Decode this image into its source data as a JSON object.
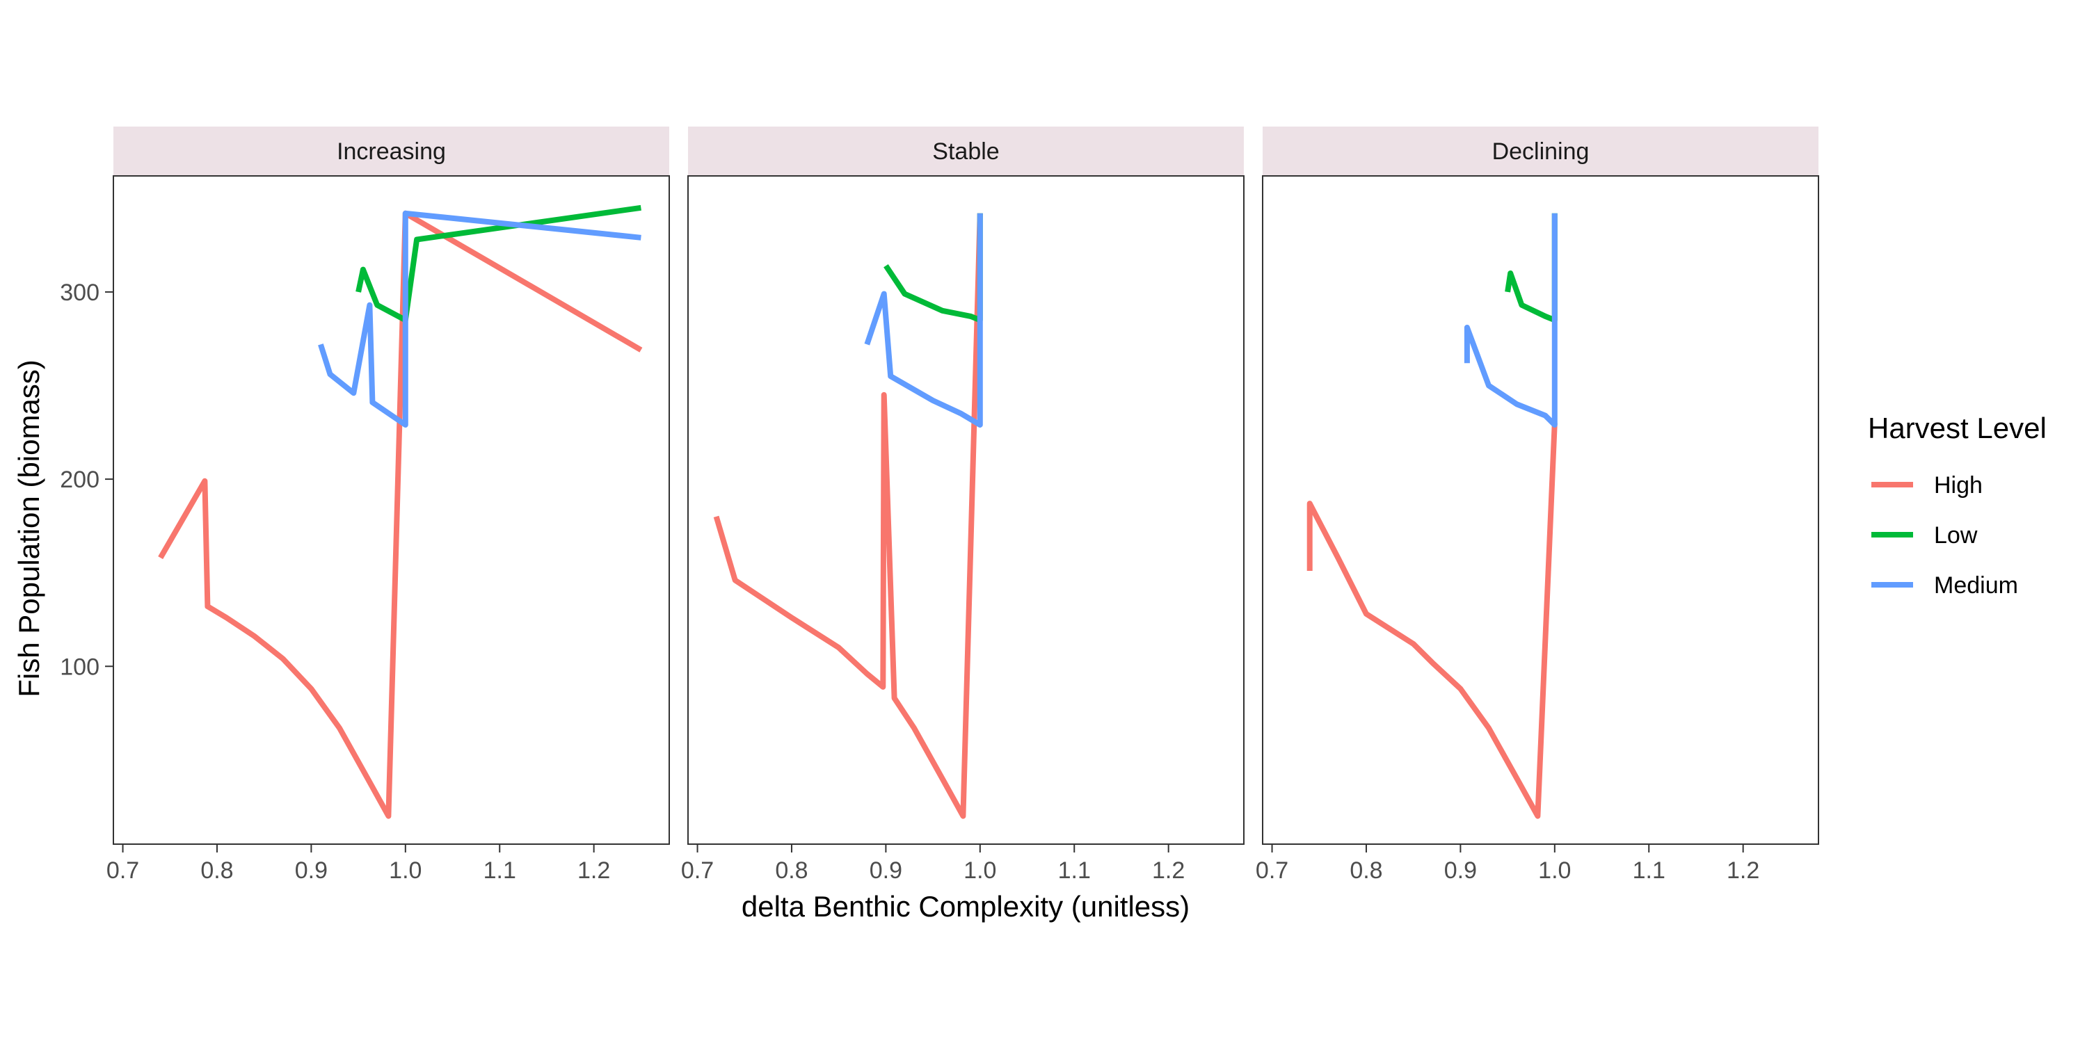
{
  "chart_data": {
    "type": "line",
    "facets": [
      "Increasing",
      "Stable",
      "Declining"
    ],
    "xlabel": "delta Benthic Complexity (unitless)",
    "ylabel": "Fish Population (biomass)",
    "xlim": [
      0.69,
      1.28
    ],
    "ylim": [
      5,
      362
    ],
    "x_ticks": [
      0.7,
      0.8,
      0.9,
      1.0,
      1.1,
      1.2
    ],
    "x_tick_labels": [
      "0.7",
      "0.8",
      "0.9",
      "1.0",
      "1.1",
      "1.2"
    ],
    "y_ticks": [
      100,
      200,
      300
    ],
    "y_tick_labels": [
      "100",
      "200",
      "300"
    ],
    "grid": false,
    "legend": {
      "title": "Harvest Level",
      "position": "right",
      "entries": [
        {
          "name": "High",
          "color": "#F8766D"
        },
        {
          "name": "Low",
          "color": "#00BA38"
        },
        {
          "name": "Medium",
          "color": "#619CFF"
        }
      ]
    },
    "panels": [
      {
        "facet": "Increasing",
        "series": [
          {
            "name": "High",
            "color": "#F8766D",
            "points": [
              [
                0.74,
                158
              ],
              [
                0.787,
                199
              ],
              [
                0.79,
                132
              ],
              [
                0.81,
                126
              ],
              [
                0.84,
                116
              ],
              [
                0.87,
                104
              ],
              [
                0.9,
                88
              ],
              [
                0.93,
                67
              ],
              [
                0.96,
                40
              ],
              [
                0.982,
                20
              ],
              [
                1.0,
                342
              ],
              [
                1.25,
                269
              ]
            ]
          },
          {
            "name": "Low",
            "color": "#00BA38",
            "points": [
              [
                0.95,
                300
              ],
              [
                0.955,
                312
              ],
              [
                0.97,
                293
              ],
              [
                1.0,
                285
              ],
              [
                1.012,
                328
              ],
              [
                1.25,
                345
              ]
            ]
          },
          {
            "name": "Medium",
            "color": "#619CFF",
            "points": [
              [
                0.91,
                272
              ],
              [
                0.92,
                256
              ],
              [
                0.945,
                246
              ],
              [
                0.962,
                293
              ],
              [
                0.965,
                241
              ],
              [
                1.0,
                229
              ],
              [
                1.0,
                342
              ],
              [
                1.25,
                329
              ]
            ]
          }
        ]
      },
      {
        "facet": "Stable",
        "series": [
          {
            "name": "High",
            "color": "#F8766D",
            "points": [
              [
                0.72,
                180
              ],
              [
                0.74,
                146
              ],
              [
                0.8,
                126
              ],
              [
                0.85,
                110
              ],
              [
                0.88,
                96
              ],
              [
                0.897,
                89
              ],
              [
                0.898,
                245
              ],
              [
                0.909,
                83
              ],
              [
                0.93,
                67
              ],
              [
                0.96,
                40
              ],
              [
                0.982,
                20
              ],
              [
                1.0,
                342
              ]
            ]
          },
          {
            "name": "Low",
            "color": "#00BA38",
            "points": [
              [
                0.9,
                314
              ],
              [
                0.92,
                299
              ],
              [
                0.96,
                290
              ],
              [
                0.99,
                287
              ],
              [
                1.0,
                285
              ],
              [
                1.0,
                342
              ]
            ]
          },
          {
            "name": "Medium",
            "color": "#619CFF",
            "points": [
              [
                0.88,
                272
              ],
              [
                0.898,
                299
              ],
              [
                0.905,
                255
              ],
              [
                0.95,
                242
              ],
              [
                0.98,
                235
              ],
              [
                1.0,
                229
              ],
              [
                1.0,
                342
              ]
            ]
          }
        ]
      },
      {
        "facet": "Declining",
        "series": [
          {
            "name": "High",
            "color": "#F8766D",
            "points": [
              [
                0.74,
                151
              ],
              [
                0.74,
                187
              ],
              [
                0.77,
                158
              ],
              [
                0.8,
                128
              ],
              [
                0.85,
                112
              ],
              [
                0.87,
                102
              ],
              [
                0.9,
                88
              ],
              [
                0.93,
                67
              ],
              [
                0.96,
                40
              ],
              [
                0.982,
                20
              ],
              [
                1.0,
                230
              ]
            ]
          },
          {
            "name": "Low",
            "color": "#00BA38",
            "points": [
              [
                0.95,
                300
              ],
              [
                0.953,
                310
              ],
              [
                0.965,
                293
              ],
              [
                0.99,
                287
              ],
              [
                1.0,
                285
              ],
              [
                1.0,
                342
              ]
            ]
          },
          {
            "name": "Medium",
            "color": "#619CFF",
            "points": [
              [
                0.907,
                262
              ],
              [
                0.907,
                281
              ],
              [
                0.93,
                250
              ],
              [
                0.96,
                240
              ],
              [
                0.99,
                234
              ],
              [
                1.0,
                229
              ],
              [
                1.0,
                342
              ]
            ]
          }
        ]
      }
    ]
  }
}
